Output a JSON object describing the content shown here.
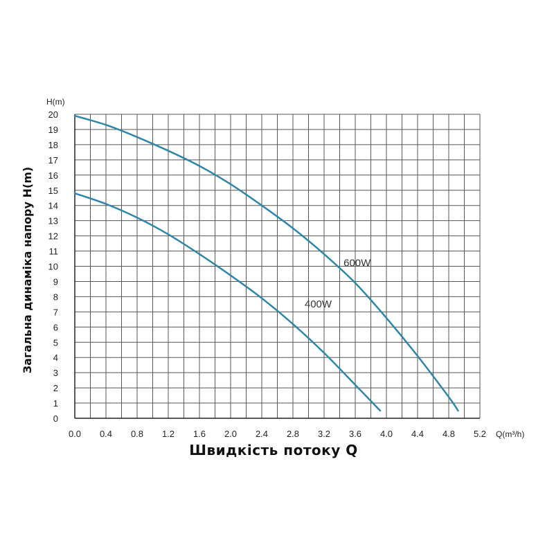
{
  "chart_data": {
    "type": "line",
    "xlabel": "Швидкість потоку Q",
    "ylabel": "Загальна динаміка напору H(m)",
    "x_unit": "Q(m³/h)",
    "y_unit": "H(m)",
    "xlim": [
      0,
      5.2
    ],
    "ylim": [
      0,
      20
    ],
    "x_ticks": [
      "0.0",
      "0.4",
      "0.8",
      "1.2",
      "1.6",
      "2.0",
      "2.4",
      "2.8",
      "3.2",
      "3.6",
      "4.0",
      "4.4",
      "4.8",
      "5.2"
    ],
    "y_ticks": [
      "0",
      "1",
      "2",
      "3",
      "4",
      "5",
      "6",
      "7",
      "8",
      "9",
      "10",
      "11",
      "12",
      "13",
      "14",
      "15",
      "16",
      "17",
      "18",
      "19",
      "20"
    ],
    "grid": true,
    "legend": "inline labels",
    "series": [
      {
        "name": "600W",
        "color": "#2e86a8",
        "x": [
          0.0,
          0.4,
          0.8,
          1.2,
          1.6,
          2.0,
          2.4,
          2.8,
          3.2,
          3.6,
          4.0,
          4.4,
          4.8,
          4.92
        ],
        "y": [
          19.9,
          19.3,
          18.5,
          17.6,
          16.6,
          15.4,
          14.0,
          12.5,
          10.8,
          8.9,
          6.6,
          4.1,
          1.4,
          0.5
        ]
      },
      {
        "name": "400W",
        "color": "#2e86a8",
        "x": [
          0.0,
          0.4,
          0.8,
          1.2,
          1.6,
          2.0,
          2.4,
          2.8,
          3.2,
          3.6,
          3.92
        ],
        "y": [
          14.8,
          14.1,
          13.2,
          12.1,
          10.8,
          9.4,
          7.9,
          6.2,
          4.3,
          2.2,
          0.5
        ]
      }
    ]
  }
}
